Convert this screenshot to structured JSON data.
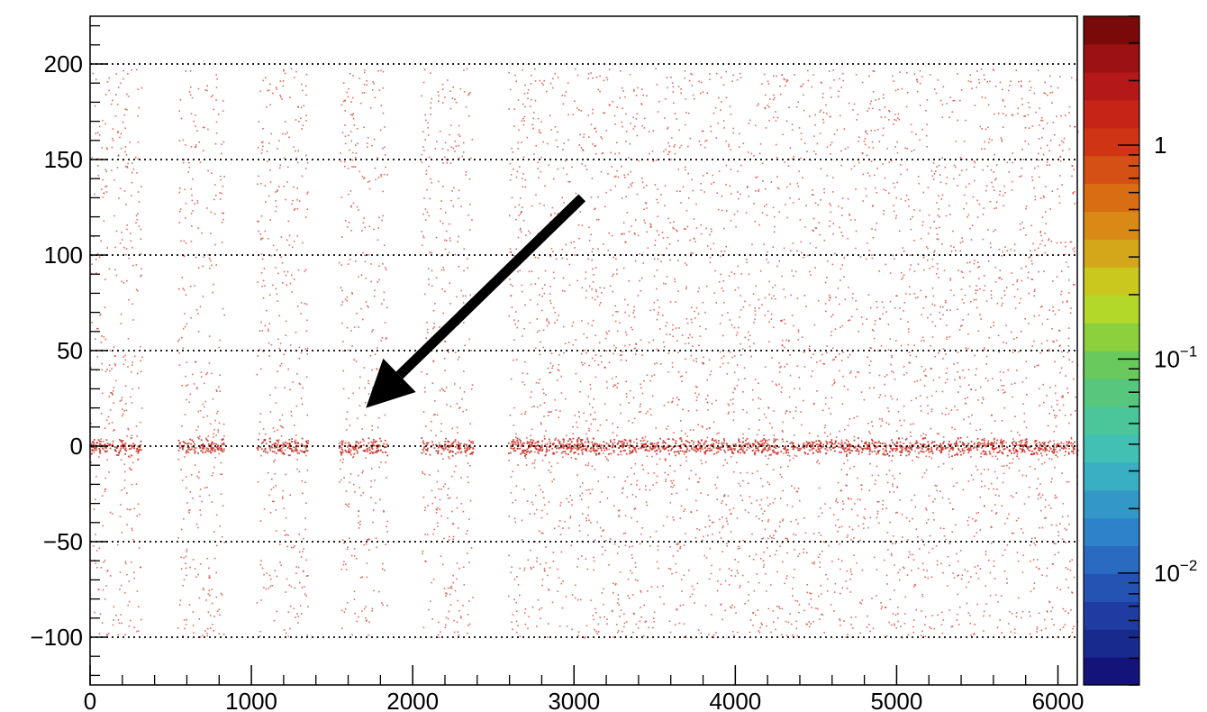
{
  "chart_data": {
    "type": "heatmap",
    "title": "",
    "xlabel": "",
    "ylabel": "",
    "xlim": [
      0,
      6120
    ],
    "ylim": [
      -125,
      225
    ],
    "x_ticks": [
      0,
      1000,
      2000,
      3000,
      4000,
      5000,
      6000
    ],
    "x_tick_labels": [
      "0",
      "1000",
      "2000",
      "3000",
      "4000",
      "5000",
      "6000"
    ],
    "y_ticks": [
      -100,
      -50,
      0,
      50,
      100,
      150,
      200
    ],
    "y_tick_labels": [
      "−100",
      "−50",
      "0",
      "50",
      "100",
      "150",
      "200"
    ],
    "grid": "horizontal dotted at y ticks",
    "occupied_x_bands": [
      [
        0,
        320
      ],
      [
        540,
        830
      ],
      [
        1030,
        1350
      ],
      [
        1540,
        1840
      ],
      [
        2050,
        2370
      ],
      [
        2590,
        6120
      ]
    ],
    "y_extent": [
      -100,
      198
    ],
    "dense_band_y": 0,
    "point_color": "#d63a2a",
    "colorbar": {
      "scale": "log",
      "range": [
        0.003,
        4
      ],
      "tick_labels": [
        {
          "value": 1,
          "base": "1",
          "exp": ""
        },
        {
          "value": 0.1,
          "base": "10",
          "exp": "−1"
        },
        {
          "value": 0.01,
          "base": "10",
          "exp": "−2"
        }
      ],
      "colors": [
        "#13137a",
        "#192a8e",
        "#1f3ca2",
        "#2553b4",
        "#2a6ac0",
        "#2e82c8",
        "#3398c8",
        "#3aaec2",
        "#42c0b4",
        "#4bc69a",
        "#56c77c",
        "#6ac95c",
        "#8cd03d",
        "#b3d829",
        "#cac81f",
        "#d4a71a",
        "#d98a16",
        "#d96d14",
        "#d55014",
        "#cf3515",
        "#c52416",
        "#b51818",
        "#9c1111",
        "#7a0a0a"
      ]
    },
    "annotation": {
      "type": "arrow",
      "from": [
        3050,
        130
      ],
      "to": [
        1710,
        20
      ],
      "color": "#000000"
    }
  }
}
